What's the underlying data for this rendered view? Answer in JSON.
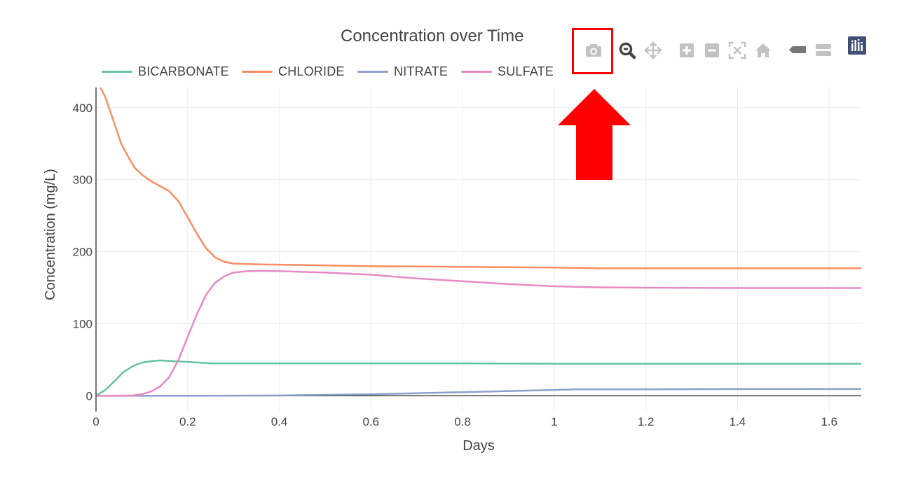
{
  "chart_data": {
    "type": "line",
    "title": "Concentration over Time",
    "xlabel": "Days",
    "ylabel": "Concentration (mg/L)",
    "xlim": [
      0,
      1.67
    ],
    "ylim": [
      -22,
      428
    ],
    "x_ticks": [
      "0",
      "0.2",
      "0.4",
      "0.6",
      "0.8",
      "1",
      "1.2",
      "1.4",
      "1.6"
    ],
    "y_ticks": [
      "0",
      "100",
      "200",
      "300",
      "400"
    ],
    "grid": true,
    "legend_position": "top-left, horizontal",
    "series": [
      {
        "name": "BICARBONATE",
        "color": "#66c2a5",
        "points": [
          [
            0,
            0
          ],
          [
            0.02,
            8
          ],
          [
            0.04,
            20
          ],
          [
            0.06,
            33
          ],
          [
            0.08,
            41
          ],
          [
            0.1,
            46
          ],
          [
            0.12,
            48
          ],
          [
            0.14,
            49
          ],
          [
            0.17,
            48
          ],
          [
            0.2,
            47
          ],
          [
            0.25,
            45
          ],
          [
            0.3,
            45
          ],
          [
            0.4,
            45
          ],
          [
            0.6,
            45
          ],
          [
            0.8,
            45
          ],
          [
            1.0,
            44.5
          ],
          [
            1.2,
            44.5
          ],
          [
            1.4,
            44.5
          ],
          [
            1.67,
            44.5
          ]
        ]
      },
      {
        "name": "CHLORIDE",
        "color": "#fc8d62",
        "points": [
          [
            0,
            440
          ],
          [
            0.02,
            415
          ],
          [
            0.04,
            378
          ],
          [
            0.055,
            350
          ],
          [
            0.07,
            332
          ],
          [
            0.085,
            316
          ],
          [
            0.1,
            307
          ],
          [
            0.12,
            298
          ],
          [
            0.14,
            291
          ],
          [
            0.16,
            284
          ],
          [
            0.18,
            270
          ],
          [
            0.2,
            248
          ],
          [
            0.22,
            225
          ],
          [
            0.24,
            205
          ],
          [
            0.26,
            192
          ],
          [
            0.28,
            186
          ],
          [
            0.3,
            183.5
          ],
          [
            0.35,
            182.5
          ],
          [
            0.4,
            182
          ],
          [
            0.6,
            180
          ],
          [
            0.8,
            179
          ],
          [
            1.0,
            178
          ],
          [
            1.1,
            177
          ],
          [
            1.2,
            177
          ],
          [
            1.4,
            177
          ],
          [
            1.67,
            177
          ]
        ]
      },
      {
        "name": "NITRATE",
        "color": "#8da0cb",
        "points": [
          [
            0,
            0
          ],
          [
            0.2,
            0
          ],
          [
            0.4,
            0.5
          ],
          [
            0.6,
            2
          ],
          [
            0.8,
            5
          ],
          [
            1.0,
            8
          ],
          [
            1.05,
            9
          ],
          [
            1.2,
            9
          ],
          [
            1.4,
            9.3
          ],
          [
            1.67,
            9.5
          ]
        ]
      },
      {
        "name": "SULFATE",
        "color": "#e78ac3",
        "points": [
          [
            0,
            0
          ],
          [
            0.04,
            0
          ],
          [
            0.08,
            0.5
          ],
          [
            0.1,
            2
          ],
          [
            0.12,
            6
          ],
          [
            0.14,
            13
          ],
          [
            0.16,
            26
          ],
          [
            0.18,
            50
          ],
          [
            0.2,
            82
          ],
          [
            0.22,
            113
          ],
          [
            0.24,
            140
          ],
          [
            0.26,
            157
          ],
          [
            0.28,
            166
          ],
          [
            0.3,
            171
          ],
          [
            0.33,
            173
          ],
          [
            0.36,
            173.5
          ],
          [
            0.4,
            173
          ],
          [
            0.5,
            171
          ],
          [
            0.6,
            168
          ],
          [
            0.7,
            163
          ],
          [
            0.8,
            159
          ],
          [
            0.9,
            155
          ],
          [
            1.0,
            152
          ],
          [
            1.1,
            150.5
          ],
          [
            1.2,
            150
          ],
          [
            1.4,
            149.5
          ],
          [
            1.67,
            149.5
          ]
        ]
      }
    ]
  },
  "modebar": [
    {
      "name": "camera-icon",
      "title": "Download plot as a png"
    },
    {
      "name": "zoom-icon",
      "title": "Zoom"
    },
    {
      "name": "pan-icon",
      "title": "Pan"
    },
    {
      "name": "zoom-in-icon",
      "title": "Zoom in"
    },
    {
      "name": "zoom-out-icon",
      "title": "Zoom out"
    },
    {
      "name": "autoscale-icon",
      "title": "Autoscale"
    },
    {
      "name": "home-icon",
      "title": "Reset axes"
    },
    {
      "name": "spike-lines-icon",
      "title": "Show closest data on hover"
    },
    {
      "name": "compare-hover-icon",
      "title": "Compare data on hover"
    },
    {
      "name": "plotly-logo-icon",
      "title": "Produced with Plotly"
    }
  ],
  "annotation": {
    "highlight_color": "#ff0000",
    "arrow_color": "#ff0000"
  }
}
